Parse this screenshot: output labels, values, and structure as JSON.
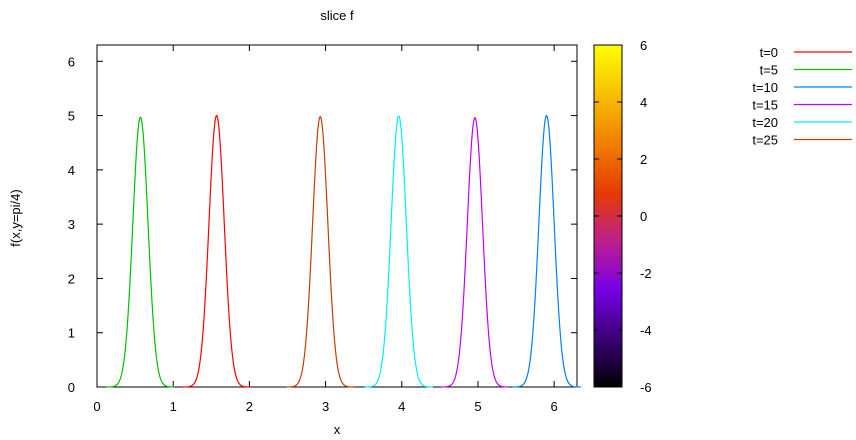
{
  "chart_data": {
    "type": "line",
    "title": "slice f",
    "xlabel": "x",
    "ylabel": "f(x,y=pi/4)",
    "xlim": [
      0,
      6.3
    ],
    "ylim": [
      0,
      6.3
    ],
    "xticks": [
      "0",
      "1",
      "2",
      "3",
      "4",
      "5",
      "6"
    ],
    "yticks": [
      "0",
      "1",
      "2",
      "3",
      "4",
      "5",
      "6"
    ],
    "grid": false,
    "legend_position": "top-right, outside plot",
    "series": [
      {
        "name": "t=0",
        "color": "#ff0000",
        "peak_x": 1.57,
        "peak": 5.0
      },
      {
        "name": "t=5",
        "color": "#00c000",
        "peak_x": 0.57,
        "peak": 4.97
      },
      {
        "name": "t=10",
        "color": "#0080ff",
        "peak_x": 5.9,
        "peak": 5.0
      },
      {
        "name": "t=15",
        "color": "#c000ff",
        "peak_x": 4.96,
        "peak": 4.96
      },
      {
        "name": "t=20",
        "color": "#00eeee",
        "peak_x": 3.96,
        "peak": 4.99
      },
      {
        "name": "t=25",
        "color": "#c04000",
        "peak_x": 2.93,
        "peak": 4.98
      }
    ],
    "peak_halfwidth_x": 0.1,
    "colorbar": {
      "range": [
        -6,
        6
      ],
      "ticks": [
        "6",
        "4",
        "2",
        "0",
        "-2",
        "-4",
        "-6"
      ],
      "palette": [
        "#000000",
        "#3c0078",
        "#7800e6",
        "#c0208a",
        "#e63c00",
        "#f08000",
        "#f8c000",
        "#ffff00"
      ]
    }
  }
}
